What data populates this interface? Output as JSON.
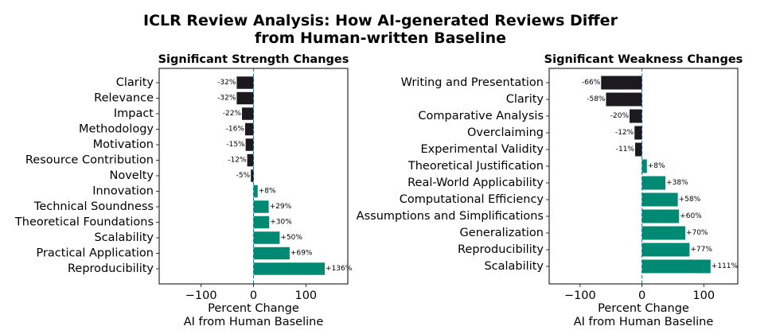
{
  "title_line1": "ICLR Review Analysis: How AI-generated Reviews Differ",
  "title_line2": "from Human-written Baseline",
  "colors": {
    "negative": "#1c1a1e",
    "positive": "#008a74",
    "zero_line": "#1f77b4"
  },
  "chart_data": [
    {
      "type": "bar",
      "orientation": "horizontal",
      "title": "Significant Strength Changes",
      "xlabel_line1": "Percent Change",
      "xlabel_line2": "AI from Human Baseline",
      "xlim": [
        -180,
        180
      ],
      "xticks": [
        -100,
        0,
        100
      ],
      "xtick_labels": [
        "−100",
        "0",
        "100"
      ],
      "categories": [
        "Clarity",
        "Relevance",
        "Impact",
        "Methodology",
        "Motivation",
        "Resource Contribution",
        "Novelty",
        "Innovation",
        "Technical Soundness",
        "Theoretical Foundations",
        "Scalability",
        "Practical Application",
        "Reproducibility"
      ],
      "values": [
        -32,
        -32,
        -22,
        -16,
        -15,
        -12,
        -5,
        8,
        29,
        30,
        50,
        69,
        136
      ],
      "labels": [
        "-32%",
        "-32%",
        "-22%",
        "-16%",
        "-15%",
        "-12%",
        "-5%",
        "+8%",
        "+29%",
        "+30%",
        "+50%",
        "+69%",
        "+136%"
      ]
    },
    {
      "type": "bar",
      "orientation": "horizontal",
      "title": "Significant Weakness Changes",
      "xlabel_line1": "Percent Change",
      "xlabel_line2": "AI from Human Baseline",
      "xlim": [
        -150,
        155
      ],
      "xticks": [
        -100,
        0,
        100
      ],
      "xtick_labels": [
        "−100",
        "0",
        "100"
      ],
      "categories": [
        "Writing and Presentation",
        "Clarity",
        "Comparative Analysis",
        "Overclaiming",
        "Experimental Validity",
        "Theoretical Justification",
        "Real-World Applicability",
        "Computational Efficiency",
        "Assumptions and Simplifications",
        "Generalization",
        "Reproducibility",
        "Scalability"
      ],
      "values": [
        -66,
        -58,
        -20,
        -12,
        -11,
        8,
        38,
        58,
        60,
        70,
        77,
        111
      ],
      "labels": [
        "-66%",
        "-58%",
        "-20%",
        "-12%",
        "-11%",
        "+8%",
        "+38%",
        "+58%",
        "+60%",
        "+70%",
        "+77%",
        "+111%"
      ]
    }
  ]
}
